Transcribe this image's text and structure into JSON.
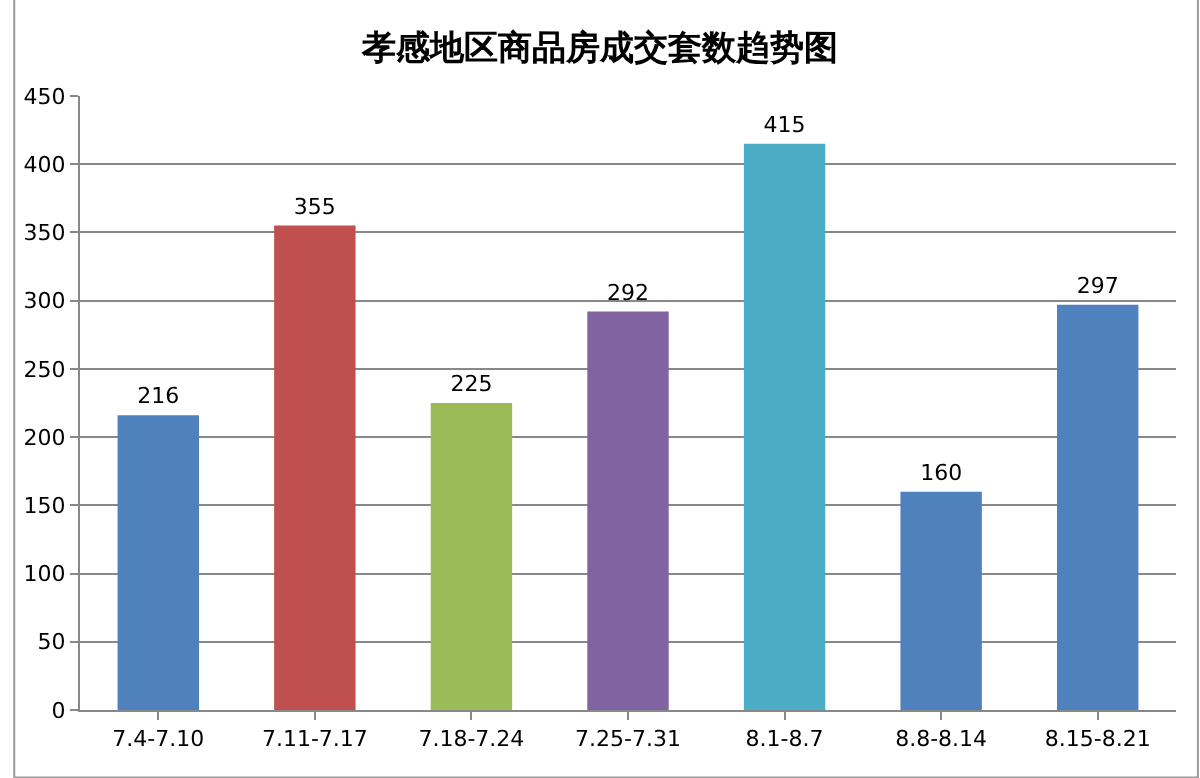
{
  "chart_data": {
    "type": "bar",
    "title": "孝感地区商品房成交套数趋势图",
    "categories": [
      "7.4-7.10",
      "7.11-7.17",
      "7.18-7.24",
      "7.25-7.31",
      "8.1-8.7",
      "8.8-8.14",
      "8.15-8.21"
    ],
    "values": [
      216,
      355,
      225,
      292,
      415,
      160,
      297
    ],
    "colors": [
      "#4f81bd",
      "#c0504d",
      "#9bbb59",
      "#8064a2",
      "#4bacc6",
      "#4f81bd",
      "#4f81bd"
    ],
    "ylim": [
      0,
      450
    ],
    "yticks": [
      0,
      50,
      100,
      150,
      200,
      250,
      300,
      350,
      400,
      450
    ],
    "grid": "y",
    "data_labels": true
  }
}
